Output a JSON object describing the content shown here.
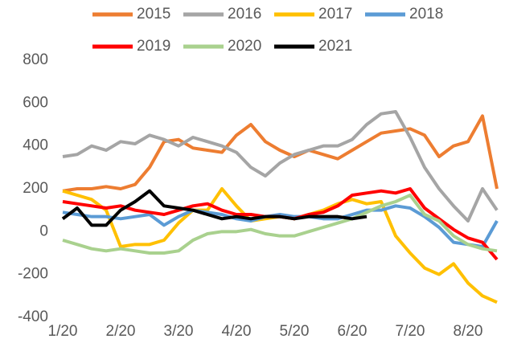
{
  "chart_data": {
    "type": "line",
    "x": [
      "1/20",
      null,
      null,
      null,
      "2/20",
      null,
      null,
      null,
      "3/20",
      null,
      null,
      null,
      "4/20",
      null,
      null,
      null,
      "5/20",
      null,
      null,
      null,
      "6/20",
      null,
      null,
      null,
      "7/20",
      null,
      null,
      null,
      "8/20",
      null,
      null
    ],
    "series": [
      {
        "name": "2015",
        "color": "#ED7D31",
        "values": [
          190,
          200,
          200,
          210,
          200,
          220,
          300,
          420,
          430,
          390,
          380,
          370,
          450,
          500,
          420,
          380,
          350,
          380,
          360,
          340,
          380,
          420,
          460,
          470,
          480,
          450,
          350,
          400,
          420,
          540,
          200
        ]
      },
      {
        "name": "2016",
        "color": "#A5A5A5",
        "values": [
          350,
          360,
          400,
          380,
          420,
          410,
          450,
          430,
          400,
          440,
          420,
          400,
          370,
          300,
          260,
          320,
          360,
          380,
          400,
          400,
          430,
          500,
          550,
          560,
          440,
          300,
          200,
          120,
          50,
          200,
          100
        ]
      },
      {
        "name": "2017",
        "color": "#FFC000",
        "values": [
          190,
          170,
          150,
          100,
          -70,
          -60,
          -60,
          -40,
          40,
          100,
          100,
          200,
          120,
          50,
          60,
          70,
          60,
          80,
          100,
          130,
          150,
          130,
          140,
          -20,
          -100,
          -170,
          -200,
          -150,
          -240,
          -300,
          -330
        ]
      },
      {
        "name": "2018",
        "color": "#5B9BD5",
        "values": [
          90,
          80,
          70,
          70,
          60,
          70,
          80,
          30,
          70,
          100,
          90,
          80,
          60,
          50,
          70,
          80,
          70,
          70,
          60,
          60,
          80,
          100,
          100,
          120,
          110,
          70,
          20,
          -50,
          -60,
          -70,
          50
        ]
      },
      {
        "name": "2019",
        "color": "#FF0000",
        "values": [
          140,
          130,
          120,
          110,
          120,
          100,
          90,
          80,
          100,
          120,
          130,
          100,
          80,
          80,
          70,
          70,
          60,
          80,
          90,
          120,
          170,
          180,
          190,
          180,
          200,
          110,
          60,
          10,
          -30,
          -50,
          -130
        ]
      },
      {
        "name": "2020",
        "color": "#A9D18E",
        "values": [
          -40,
          -60,
          -80,
          -90,
          -80,
          -90,
          -100,
          -100,
          -90,
          -40,
          -10,
          0,
          0,
          10,
          -10,
          -20,
          -20,
          0,
          20,
          40,
          60,
          90,
          120,
          140,
          170,
          80,
          50,
          -20,
          -60,
          -80,
          -90
        ]
      },
      {
        "name": "2021",
        "color": "#000000",
        "values": [
          60,
          110,
          30,
          30,
          100,
          140,
          190,
          120,
          110,
          100,
          80,
          60,
          70,
          60,
          70,
          70,
          60,
          70,
          70,
          70,
          60,
          70,
          null,
          null,
          null,
          null,
          null,
          null,
          null,
          null,
          null
        ]
      }
    ],
    "ylim": [
      -400,
      800
    ],
    "yticks": [
      -400,
      -200,
      0,
      200,
      400,
      600,
      800
    ],
    "legend": "top"
  }
}
